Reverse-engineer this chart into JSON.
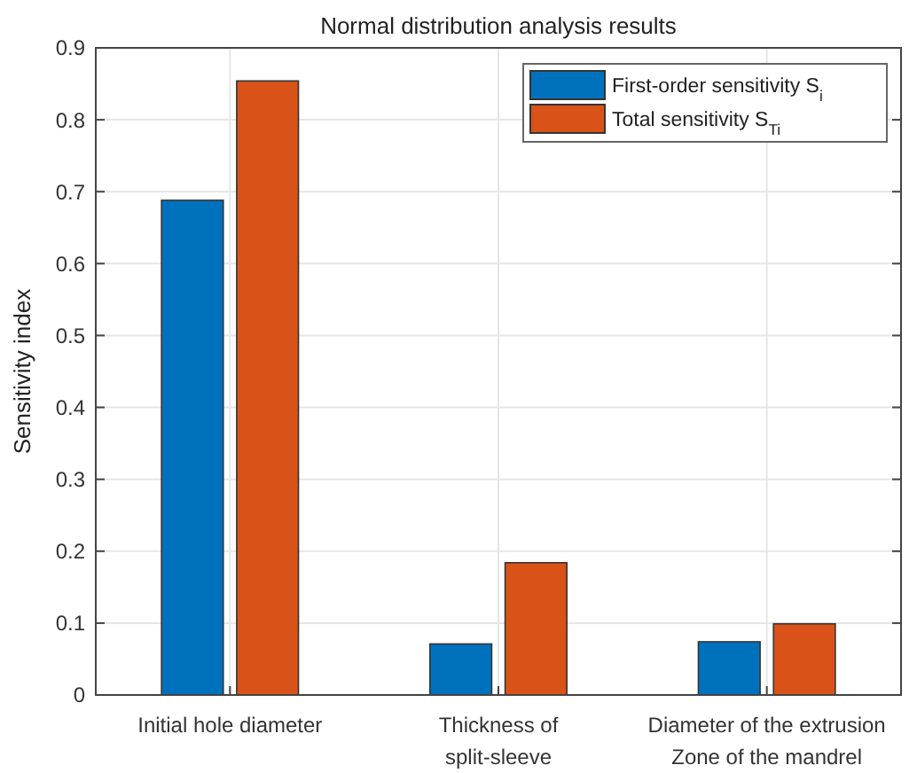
{
  "chart_data": {
    "type": "bar",
    "title": "Normal distribution analysis results",
    "ylabel": "Sensitivity index",
    "categories": [
      "Initial hole diameter",
      "Thickness of\nsplit-sleeve",
      "Diameter of the extrusion\nZone of the mandrel"
    ],
    "series": [
      {
        "name": "First-order sensitivity S$_{i}$",
        "color": "#0072bd",
        "values": [
          0.688,
          0.071,
          0.074
        ]
      },
      {
        "name": "Total sensitivity S$_{Ti}$",
        "color": "#d95319",
        "values": [
          0.854,
          0.184,
          0.099
        ]
      }
    ],
    "ylim": [
      0,
      0.9
    ],
    "yticks": [
      0,
      0.1,
      0.2,
      0.3,
      0.4,
      0.5,
      0.6,
      0.7,
      0.8,
      0.9
    ],
    "grid": true,
    "legend": "top right"
  }
}
